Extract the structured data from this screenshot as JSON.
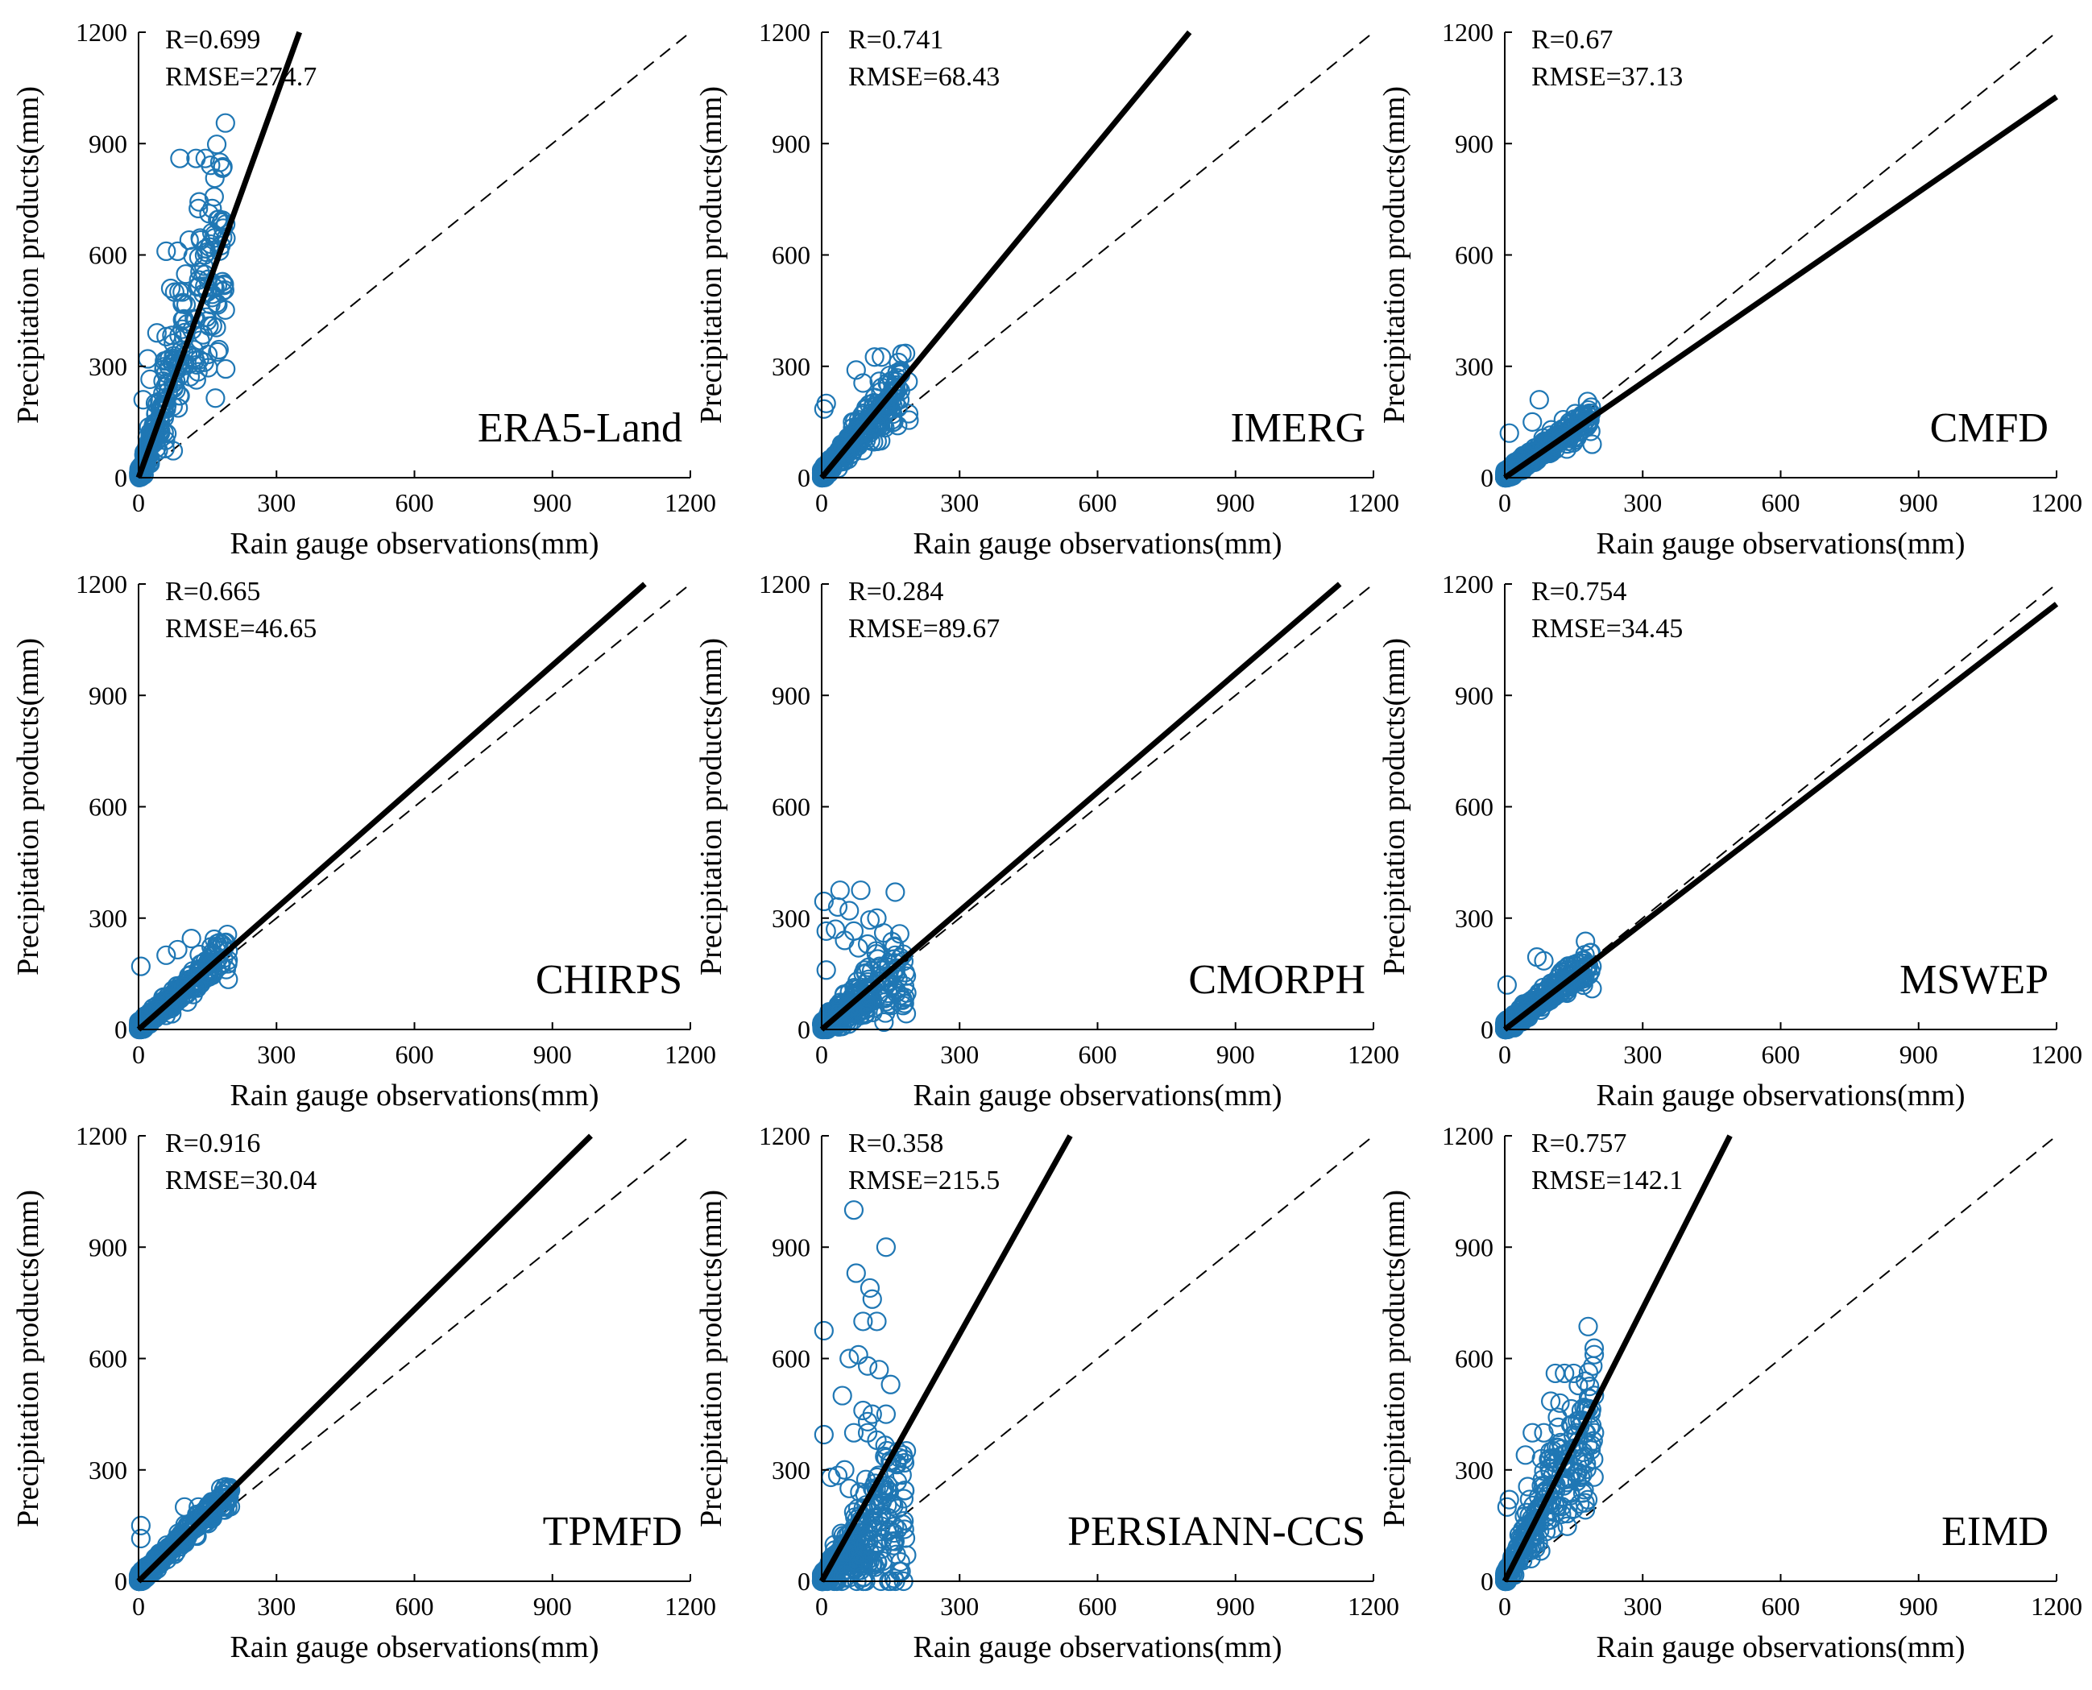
{
  "figure": {
    "marker_color": "#1f77b4",
    "panel_order": [
      "ERA5-Land",
      "IMERG",
      "CMFD",
      "CHIRPS",
      "CMORPH",
      "MSWEP",
      "TPMFD",
      "PERSIANN-CCS",
      "EIMD"
    ]
  },
  "chart_data": [
    {
      "type": "scatter",
      "title": "ERA5-Land",
      "xlabel": "Rain gauge observations(mm)",
      "ylabel": "Precipitation products(mm)",
      "xlim": [
        0,
        1200
      ],
      "ylim": [
        0,
        1200
      ],
      "xticks": [
        "0",
        "300",
        "600",
        "900",
        "1200"
      ],
      "yticks": [
        "0",
        "300",
        "600",
        "900",
        "1200"
      ],
      "stats": {
        "r": "R=0.699",
        "rmse": "RMSE=274.7"
      },
      "fit": {
        "slope": 3.43,
        "intercept": 0
      },
      "reference_line": {
        "slope": 1,
        "intercept": 0
      },
      "scatter": {
        "x_max": 190,
        "slope": 3.4,
        "spread": 0.9,
        "n": 260,
        "seed": 11,
        "highlights": [
          [
            90,
            860
          ],
          [
            125,
            860
          ],
          [
            145,
            860
          ],
          [
            130,
            725
          ],
          [
            160,
            725
          ],
          [
            60,
            610
          ],
          [
            85,
            610
          ],
          [
            110,
            640
          ],
          [
            135,
            640
          ],
          [
            190,
            645
          ],
          [
            70,
            510
          ],
          [
            95,
            500
          ],
          [
            150,
            500
          ],
          [
            170,
            470
          ],
          [
            40,
            390
          ],
          [
            60,
            380
          ],
          [
            95,
            400
          ],
          [
            175,
            345
          ],
          [
            20,
            320
          ],
          [
            25,
            265
          ],
          [
            10,
            210
          ],
          [
            80,
            310
          ]
        ]
      }
    },
    {
      "type": "scatter",
      "title": "IMERG",
      "xlabel": "Rain gauge observations(mm)",
      "ylabel": "Precipitation products(mm)",
      "xlim": [
        0,
        1200
      ],
      "ylim": [
        0,
        1200
      ],
      "xticks": [
        "0",
        "300",
        "600",
        "900",
        "1200"
      ],
      "yticks": [
        "0",
        "300",
        "600",
        "900",
        "1200"
      ],
      "stats": {
        "r": "R=0.741",
        "rmse": "RMSE=68.43"
      },
      "fit": {
        "slope": 1.5,
        "intercept": 0
      },
      "reference_line": {
        "slope": 1,
        "intercept": 0
      },
      "scatter": {
        "x_max": 190,
        "slope": 1.4,
        "spread": 0.6,
        "n": 300,
        "seed": 23,
        "highlights": [
          [
            115,
            325
          ],
          [
            130,
            325
          ],
          [
            75,
            290
          ],
          [
            10,
            200
          ],
          [
            5,
            185
          ],
          [
            90,
            255
          ],
          [
            160,
            230
          ],
          [
            170,
            210
          ],
          [
            190,
            155
          ]
        ]
      }
    },
    {
      "type": "scatter",
      "title": "CMFD",
      "xlabel": "Rain gauge observations(mm)",
      "ylabel": "Precipitation products(mm)",
      "xlim": [
        0,
        1200
      ],
      "ylim": [
        0,
        1200
      ],
      "xticks": [
        "0",
        "300",
        "600",
        "900",
        "1200"
      ],
      "yticks": [
        "0",
        "300",
        "600",
        "900",
        "1200"
      ],
      "stats": {
        "r": "R=0.67",
        "rmse": "RMSE=37.13"
      },
      "fit": {
        "slope": 0.855,
        "intercept": 0
      },
      "reference_line": {
        "slope": 1,
        "intercept": 0
      },
      "scatter": {
        "x_max": 190,
        "slope": 0.85,
        "spread": 0.4,
        "n": 280,
        "seed": 37,
        "highlights": [
          [
            75,
            210
          ],
          [
            170,
            165
          ],
          [
            190,
            90
          ],
          [
            10,
            120
          ],
          [
            60,
            150
          ]
        ]
      }
    },
    {
      "type": "scatter",
      "title": "CHIRPS",
      "xlabel": "Rain gauge observations(mm)",
      "ylabel": "Precipitation products(mm)",
      "xlim": [
        0,
        1200
      ],
      "ylim": [
        0,
        1200
      ],
      "xticks": [
        "0",
        "300",
        "600",
        "900",
        "1200"
      ],
      "yticks": [
        "0",
        "300",
        "600",
        "900",
        "1200"
      ],
      "stats": {
        "r": "R=0.665",
        "rmse": "RMSE=46.65"
      },
      "fit": {
        "slope": 1.09,
        "intercept": 0
      },
      "reference_line": {
        "slope": 1,
        "intercept": 0
      },
      "scatter": {
        "x_max": 195,
        "slope": 1.05,
        "spread": 0.4,
        "n": 300,
        "seed": 41,
        "highlights": [
          [
            115,
            245
          ],
          [
            85,
            215
          ],
          [
            5,
            170
          ],
          [
            60,
            200
          ],
          [
            195,
            135
          ],
          [
            150,
            150
          ]
        ]
      }
    },
    {
      "type": "scatter",
      "title": "CMORPH",
      "xlabel": "Rain gauge observations(mm)",
      "ylabel": "Precipitation products(mm)",
      "xlim": [
        0,
        1200
      ],
      "ylim": [
        0,
        1200
      ],
      "xticks": [
        "0",
        "300",
        "600",
        "900",
        "1200"
      ],
      "yticks": [
        "0",
        "300",
        "600",
        "900",
        "1200"
      ],
      "stats": {
        "r": "R=0.284",
        "rmse": "RMSE=89.67"
      },
      "fit": {
        "slope": 1.065,
        "intercept": 0
      },
      "reference_line": {
        "slope": 1,
        "intercept": 0
      },
      "scatter": {
        "x_max": 185,
        "slope": 0.9,
        "spread": 1.2,
        "n": 300,
        "seed": 53,
        "highlights": [
          [
            40,
            375
          ],
          [
            85,
            375
          ],
          [
            160,
            370
          ],
          [
            5,
            345
          ],
          [
            35,
            330
          ],
          [
            60,
            320
          ],
          [
            120,
            300
          ],
          [
            105,
            295
          ],
          [
            10,
            265
          ],
          [
            30,
            270
          ],
          [
            70,
            265
          ],
          [
            135,
            260
          ],
          [
            80,
            220
          ],
          [
            100,
            230
          ],
          [
            50,
            240
          ],
          [
            10,
            160
          ],
          [
            160,
            200
          ],
          [
            180,
            70
          ]
        ]
      }
    },
    {
      "type": "scatter",
      "title": "MSWEP",
      "xlabel": "Rain gauge observations(mm)",
      "ylabel": "Precipitation products(mm)",
      "xlim": [
        0,
        1200
      ],
      "ylim": [
        0,
        1200
      ],
      "xticks": [
        "0",
        "300",
        "600",
        "900",
        "1200"
      ],
      "yticks": [
        "0",
        "300",
        "600",
        "900",
        "1200"
      ],
      "stats": {
        "r": "R=0.754",
        "rmse": "RMSE=34.45"
      },
      "fit": {
        "slope": 0.955,
        "intercept": 0
      },
      "reference_line": {
        "slope": 1,
        "intercept": 0
      },
      "scatter": {
        "x_max": 190,
        "slope": 0.95,
        "spread": 0.4,
        "n": 300,
        "seed": 67,
        "highlights": [
          [
            70,
            195
          ],
          [
            85,
            185
          ],
          [
            190,
            110
          ],
          [
            5,
            120
          ],
          [
            150,
            160
          ],
          [
            170,
            165
          ]
        ]
      }
    },
    {
      "type": "scatter",
      "title": "TPMFD",
      "xlabel": "Rain gauge observations(mm)",
      "ylabel": "Precipitation products(mm)",
      "xlim": [
        0,
        1200
      ],
      "ylim": [
        0,
        1200
      ],
      "xticks": [
        "0",
        "300",
        "600",
        "900",
        "1200"
      ],
      "yticks": [
        "0",
        "300",
        "600",
        "900",
        "1200"
      ],
      "stats": {
        "r": "R=0.916",
        "rmse": "RMSE=30.04"
      },
      "fit": {
        "slope": 1.22,
        "intercept": 0
      },
      "reference_line": {
        "slope": 1,
        "intercept": 0
      },
      "scatter": {
        "x_max": 200,
        "slope": 1.15,
        "spread": 0.25,
        "n": 300,
        "seed": 71,
        "highlights": [
          [
            185,
            245
          ],
          [
            200,
            245
          ],
          [
            5,
            150
          ],
          [
            5,
            115
          ],
          [
            130,
            200
          ],
          [
            160,
            210
          ],
          [
            100,
            200
          ]
        ]
      }
    },
    {
      "type": "scatter",
      "title": "PERSIANN-CCS",
      "xlabel": "Rain gauge observations(mm)",
      "ylabel": "Precipitation products(mm)",
      "xlim": [
        0,
        1200
      ],
      "ylim": [
        0,
        1200
      ],
      "xticks": [
        "0",
        "300",
        "600",
        "900",
        "1200"
      ],
      "yticks": [
        "0",
        "300",
        "600",
        "900",
        "1200"
      ],
      "stats": {
        "r": "R=0.358",
        "rmse": "RMSE=215.5"
      },
      "fit": {
        "slope": 2.22,
        "intercept": 0
      },
      "reference_line": {
        "slope": 1,
        "intercept": 0
      },
      "scatter": {
        "x_max": 185,
        "slope": 1.2,
        "spread": 1.8,
        "n": 330,
        "seed": 89,
        "highlights": [
          [
            70,
            1000
          ],
          [
            140,
            900
          ],
          [
            75,
            830
          ],
          [
            105,
            790
          ],
          [
            110,
            760
          ],
          [
            90,
            700
          ],
          [
            120,
            700
          ],
          [
            5,
            675
          ],
          [
            80,
            610
          ],
          [
            60,
            600
          ],
          [
            100,
            580
          ],
          [
            125,
            570
          ],
          [
            150,
            530
          ],
          [
            45,
            500
          ],
          [
            90,
            460
          ],
          [
            100,
            430
          ],
          [
            110,
            450
          ],
          [
            140,
            450
          ],
          [
            70,
            400
          ],
          [
            100,
            400
          ],
          [
            120,
            380
          ],
          [
            5,
            395
          ],
          [
            50,
            300
          ],
          [
            20,
            280
          ],
          [
            35,
            285
          ],
          [
            165,
            140
          ],
          [
            180,
            140
          ],
          [
            60,
            250
          ]
        ]
      }
    },
    {
      "type": "scatter",
      "title": "EIMD",
      "xlabel": "Rain gauge observations(mm)",
      "ylabel": "Precipitation products(mm)",
      "xlim": [
        0,
        1200
      ],
      "ylim": [
        0,
        1200
      ],
      "xticks": [
        "0",
        "300",
        "600",
        "900",
        "1200"
      ],
      "yticks": [
        "0",
        "300",
        "600",
        "900",
        "1200"
      ],
      "stats": {
        "r": "R=0.757",
        "rmse": "RMSE=142.1"
      },
      "fit": {
        "slope": 2.45,
        "intercept": 0
      },
      "reference_line": {
        "slope": 1,
        "intercept": 0
      },
      "scatter": {
        "x_max": 195,
        "slope": 2.3,
        "spread": 0.8,
        "n": 280,
        "seed": 97,
        "highlights": [
          [
            110,
            560
          ],
          [
            130,
            560
          ],
          [
            150,
            560
          ],
          [
            100,
            485
          ],
          [
            120,
            480
          ],
          [
            60,
            400
          ],
          [
            85,
            400
          ],
          [
            175,
            400
          ],
          [
            195,
            400
          ],
          [
            45,
            340
          ],
          [
            80,
            330
          ],
          [
            130,
            320
          ],
          [
            155,
            290
          ],
          [
            165,
            280
          ],
          [
            10,
            220
          ],
          [
            5,
            200
          ],
          [
            50,
            255
          ],
          [
            150,
            195
          ]
        ]
      }
    }
  ]
}
